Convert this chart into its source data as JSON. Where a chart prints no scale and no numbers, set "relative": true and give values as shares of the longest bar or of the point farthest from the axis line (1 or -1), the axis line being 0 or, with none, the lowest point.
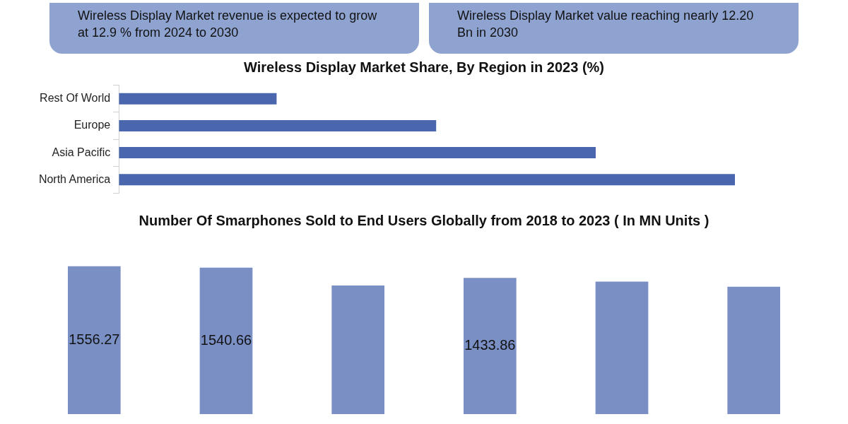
{
  "chart_data": [
    {
      "type": "other",
      "annotations": [
        "Wireless Display Market revenue is expected to grow at 12.9 % from 2024 to 2030",
        "Wireless Display Market value reaching nearly 12.20 Bn in 2030"
      ]
    },
    {
      "type": "bar",
      "orientation": "horizontal",
      "relative": true,
      "title": "Wireless  Display Market Share, By Region in 2023 (%)",
      "categories": [
        "Rest Of World",
        "Europe",
        "Asia Pacific",
        "North America"
      ],
      "values": [
        0.256,
        0.515,
        0.774,
        1
      ],
      "color": "#4a66ac"
    },
    {
      "type": "bar",
      "title": "Number Of Smarphones Sold to End Users Globally from 2018 to 2023 ( In MN Units )",
      "categories": [
        null,
        null,
        null,
        null,
        null,
        null
      ],
      "values": [
        1556.27,
        1540.66,
        1354,
        1433.86,
        1395,
        1341
      ],
      "value_labels": [
        "1556.27",
        "1540.66",
        null,
        "1433.86",
        null,
        null
      ],
      "color": "#7a8fc4"
    }
  ]
}
